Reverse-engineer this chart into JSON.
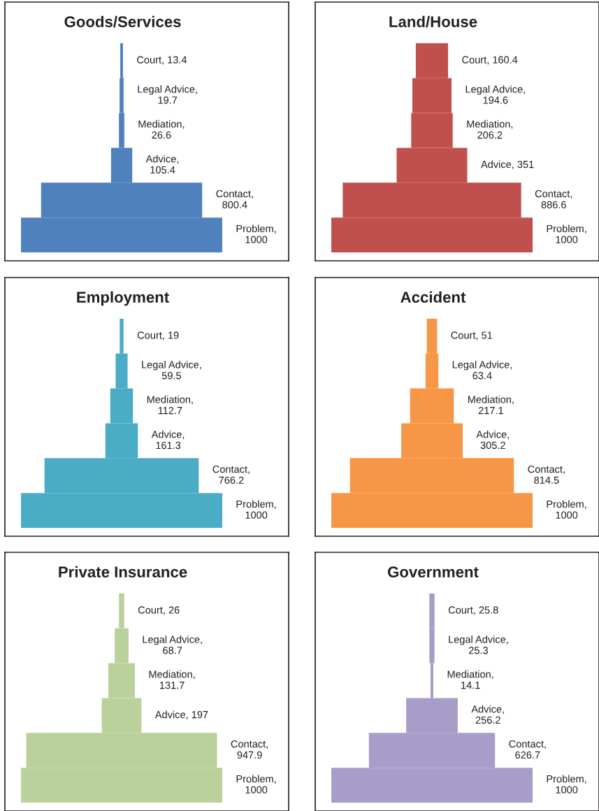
{
  "chart_data": [
    {
      "type": "other",
      "title": "Goods/Services",
      "categories": [
        null,
        null,
        null,
        null,
        null,
        null
      ],
      "values": [
        13.4,
        19.7,
        26.6,
        105.4,
        800.4,
        1000
      ],
      "value_labels": [
        "Court, 13.4",
        "Legal Advice, 19.7",
        "Mediation, 26.6",
        "Advice, 105.4",
        "Contact, 800.4",
        "Problem, 1000"
      ],
      "color": "#4f81bd"
    },
    {
      "type": "other",
      "title": "Land/House",
      "categories": [
        null,
        null,
        null,
        null,
        null,
        null
      ],
      "values": [
        160.4,
        194.6,
        206.2,
        351,
        886.6,
        1000
      ],
      "value_labels": [
        "Court, 160.4",
        "Legal Advice, 194.6",
        "Mediation, 206.2",
        "Advice, 351",
        "Contact, 886.6",
        "Problem, 1000"
      ],
      "color": "#c0504d"
    },
    {
      "type": "other",
      "title": "Employment",
      "categories": [
        null,
        null,
        null,
        null,
        null,
        null
      ],
      "values": [
        19,
        59.5,
        112.7,
        161.3,
        766.2,
        1000
      ],
      "value_labels": [
        "Court, 19",
        "Legal Advice, 59.5",
        "Mediation, 112.7",
        "Advice, 161.3",
        "Contact, 766.2",
        "Problem, 1000"
      ],
      "color": "#4bacc6"
    },
    {
      "type": "other",
      "title": "Accident",
      "categories": [
        null,
        null,
        null,
        null,
        null,
        null
      ],
      "values": [
        51,
        63.4,
        217.1,
        305.2,
        814.5,
        1000
      ],
      "value_labels": [
        "Court, 51",
        "Legal Advice, 63.4",
        "Mediation, 217.1",
        "Advice, 305.2",
        "Contact, 814.5",
        "Problem, 1000"
      ],
      "color": "#f79646"
    },
    {
      "type": "other",
      "title": "Private Insurance",
      "categories": [
        null,
        null,
        null,
        null,
        null,
        null
      ],
      "values": [
        26,
        68.7,
        131.7,
        197,
        947.9,
        1000
      ],
      "value_labels": [
        "Court, 26",
        "Legal Advice, 68.7",
        "Mediation, 131.7",
        "Advice, 197",
        "Contact, 947.9",
        "Problem, 1000"
      ],
      "color": "#bad19c"
    },
    {
      "type": "other",
      "title": "Government",
      "categories": [
        null,
        null,
        null,
        null,
        null,
        null
      ],
      "values": [
        25.8,
        25.3,
        14.1,
        256.2,
        626.7,
        1000
      ],
      "value_labels": [
        "Court, 25.8",
        "Legal Advice, 25.3",
        "Mediation, 14.1",
        "Advice, 256.2",
        "Contact, 626.7",
        "Problem, 1000"
      ],
      "color": "#a89cc8"
    }
  ]
}
